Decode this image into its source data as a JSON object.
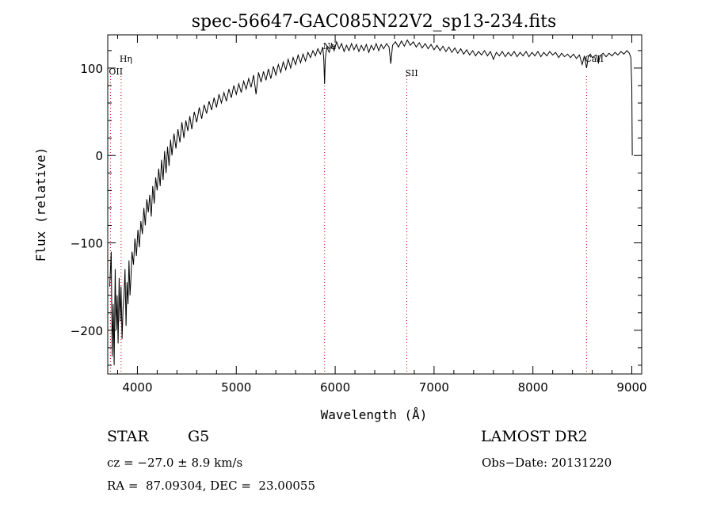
{
  "chart_data": {
    "type": "line",
    "title": "spec-56647-GAC085N22V2_sp13-234.fits",
    "xlabel": "Wavelength (Å)",
    "ylabel": "Flux (relative)",
    "xlim": [
      3700,
      9100
    ],
    "ylim": [
      -250,
      138
    ],
    "xticks": [
      4000,
      5000,
      6000,
      7000,
      8000,
      9000
    ],
    "yticks": [
      -200,
      -100,
      0,
      100
    ],
    "grid": false,
    "line_color": "#000000",
    "marker_color": "#cc0000",
    "lines": [
      {
        "label": "Hη",
        "x": 3835
      },
      {
        "label": "OII",
        "x": 3727
      },
      {
        "label": "Na",
        "x": 5893
      },
      {
        "label": "SII",
        "x": 6724
      },
      {
        "label": "CaII",
        "x": 8542
      }
    ],
    "series": [
      {
        "points": [
          [
            3720,
            -150
          ],
          [
            3735,
            -110
          ],
          [
            3745,
            -230
          ],
          [
            3755,
            -170
          ],
          [
            3765,
            -240
          ],
          [
            3775,
            -130
          ],
          [
            3785,
            -200
          ],
          [
            3795,
            -160
          ],
          [
            3805,
            -215
          ],
          [
            3815,
            -140
          ],
          [
            3825,
            -190
          ],
          [
            3835,
            -150
          ],
          [
            3845,
            -210
          ],
          [
            3855,
            -175
          ],
          [
            3865,
            -160
          ],
          [
            3875,
            -130
          ],
          [
            3885,
            -195
          ],
          [
            3895,
            -145
          ],
          [
            3905,
            -170
          ],
          [
            3915,
            -120
          ],
          [
            3925,
            -160
          ],
          [
            3935,
            -140
          ],
          [
            3945,
            -110
          ],
          [
            3960,
            -125
          ],
          [
            3975,
            -95
          ],
          [
            3990,
            -115
          ],
          [
            4005,
            -85
          ],
          [
            4020,
            -105
          ],
          [
            4035,
            -75
          ],
          [
            4050,
            -90
          ],
          [
            4065,
            -60
          ],
          [
            4080,
            -80
          ],
          [
            4095,
            -50
          ],
          [
            4110,
            -65
          ],
          [
            4125,
            -45
          ],
          [
            4140,
            -70
          ],
          [
            4155,
            -35
          ],
          [
            4170,
            -55
          ],
          [
            4185,
            -25
          ],
          [
            4200,
            -40
          ],
          [
            4215,
            -15
          ],
          [
            4230,
            -35
          ],
          [
            4245,
            -5
          ],
          [
            4260,
            -28
          ],
          [
            4275,
            5
          ],
          [
            4290,
            -20
          ],
          [
            4305,
            10
          ],
          [
            4320,
            -12
          ],
          [
            4335,
            18
          ],
          [
            4350,
            0
          ],
          [
            4370,
            25
          ],
          [
            4390,
            8
          ],
          [
            4410,
            30
          ],
          [
            4430,
            15
          ],
          [
            4450,
            38
          ],
          [
            4470,
            20
          ],
          [
            4490,
            40
          ],
          [
            4510,
            28
          ],
          [
            4530,
            45
          ],
          [
            4550,
            30
          ],
          [
            4575,
            50
          ],
          [
            4600,
            38
          ],
          [
            4625,
            55
          ],
          [
            4650,
            42
          ],
          [
            4675,
            58
          ],
          [
            4700,
            48
          ],
          [
            4725,
            62
          ],
          [
            4750,
            52
          ],
          [
            4775,
            66
          ],
          [
            4800,
            55
          ],
          [
            4825,
            70
          ],
          [
            4850,
            60
          ],
          [
            4875,
            72
          ],
          [
            4900,
            62
          ],
          [
            4925,
            76
          ],
          [
            4950,
            66
          ],
          [
            4975,
            80
          ],
          [
            5000,
            70
          ],
          [
            5025,
            82
          ],
          [
            5050,
            72
          ],
          [
            5075,
            85
          ],
          [
            5100,
            76
          ],
          [
            5125,
            88
          ],
          [
            5150,
            78
          ],
          [
            5175,
            92
          ],
          [
            5200,
            70
          ],
          [
            5225,
            95
          ],
          [
            5250,
            84
          ],
          [
            5275,
            96
          ],
          [
            5300,
            86
          ],
          [
            5325,
            99
          ],
          [
            5350,
            88
          ],
          [
            5375,
            102
          ],
          [
            5400,
            92
          ],
          [
            5425,
            104
          ],
          [
            5450,
            95
          ],
          [
            5475,
            107
          ],
          [
            5500,
            98
          ],
          [
            5525,
            110
          ],
          [
            5550,
            100
          ],
          [
            5575,
            112
          ],
          [
            5600,
            104
          ],
          [
            5625,
            115
          ],
          [
            5650,
            106
          ],
          [
            5675,
            116
          ],
          [
            5700,
            108
          ],
          [
            5725,
            118
          ],
          [
            5750,
            112
          ],
          [
            5775,
            120
          ],
          [
            5800,
            114
          ],
          [
            5825,
            122
          ],
          [
            5850,
            116
          ],
          [
            5875,
            124
          ],
          [
            5885,
            110
          ],
          [
            5893,
            82
          ],
          [
            5900,
            110
          ],
          [
            5915,
            124
          ],
          [
            5940,
            118
          ],
          [
            5965,
            128
          ],
          [
            5990,
            120
          ],
          [
            6015,
            130
          ],
          [
            6040,
            122
          ],
          [
            6065,
            128
          ],
          [
            6090,
            119
          ],
          [
            6115,
            126
          ],
          [
            6140,
            120
          ],
          [
            6165,
            128
          ],
          [
            6190,
            121
          ],
          [
            6215,
            127
          ],
          [
            6240,
            119
          ],
          [
            6265,
            126
          ],
          [
            6290,
            120
          ],
          [
            6315,
            127
          ],
          [
            6340,
            118
          ],
          [
            6365,
            126
          ],
          [
            6390,
            121
          ],
          [
            6415,
            128
          ],
          [
            6440,
            120
          ],
          [
            6465,
            127
          ],
          [
            6490,
            122
          ],
          [
            6520,
            128
          ],
          [
            6545,
            124
          ],
          [
            6563,
            105
          ],
          [
            6580,
            126
          ],
          [
            6610,
            130
          ],
          [
            6640,
            124
          ],
          [
            6670,
            131
          ],
          [
            6700,
            125
          ],
          [
            6730,
            132
          ],
          [
            6760,
            126
          ],
          [
            6790,
            130
          ],
          [
            6820,
            124
          ],
          [
            6850,
            129
          ],
          [
            6880,
            123
          ],
          [
            6910,
            128
          ],
          [
            6940,
            122
          ],
          [
            6970,
            127
          ],
          [
            7000,
            121
          ],
          [
            7030,
            126
          ],
          [
            7060,
            120
          ],
          [
            7090,
            125
          ],
          [
            7120,
            119
          ],
          [
            7150,
            124
          ],
          [
            7180,
            118
          ],
          [
            7210,
            123
          ],
          [
            7240,
            117
          ],
          [
            7270,
            122
          ],
          [
            7300,
            116
          ],
          [
            7330,
            121
          ],
          [
            7360,
            115
          ],
          [
            7390,
            120
          ],
          [
            7420,
            114
          ],
          [
            7450,
            119
          ],
          [
            7480,
            115
          ],
          [
            7510,
            120
          ],
          [
            7540,
            114
          ],
          [
            7570,
            119
          ],
          [
            7600,
            110
          ],
          [
            7630,
            118
          ],
          [
            7660,
            114
          ],
          [
            7690,
            119
          ],
          [
            7720,
            113
          ],
          [
            7750,
            118
          ],
          [
            7780,
            114
          ],
          [
            7810,
            119
          ],
          [
            7840,
            113
          ],
          [
            7870,
            118
          ],
          [
            7900,
            114
          ],
          [
            7930,
            119
          ],
          [
            7960,
            113
          ],
          [
            7990,
            118
          ],
          [
            8020,
            114
          ],
          [
            8050,
            119
          ],
          [
            8080,
            113
          ],
          [
            8110,
            118
          ],
          [
            8140,
            114
          ],
          [
            8170,
            119
          ],
          [
            8200,
            115
          ],
          [
            8230,
            118
          ],
          [
            8260,
            112
          ],
          [
            8290,
            117
          ],
          [
            8320,
            113
          ],
          [
            8350,
            116
          ],
          [
            8380,
            112
          ],
          [
            8410,
            116
          ],
          [
            8440,
            111
          ],
          [
            8470,
            115
          ],
          [
            8498,
            104
          ],
          [
            8520,
            114
          ],
          [
            8542,
            100
          ],
          [
            8560,
            113
          ],
          [
            8580,
            116
          ],
          [
            8600,
            112
          ],
          [
            8640,
            115
          ],
          [
            8662,
            106
          ],
          [
            8680,
            114
          ],
          [
            8710,
            117
          ],
          [
            8740,
            113
          ],
          [
            8770,
            117
          ],
          [
            8800,
            114
          ],
          [
            8830,
            118
          ],
          [
            8860,
            115
          ],
          [
            8890,
            119
          ],
          [
            8920,
            116
          ],
          [
            8950,
            120
          ],
          [
            8975,
            117
          ],
          [
            8990,
            112
          ],
          [
            9000,
            80
          ],
          [
            9005,
            0
          ]
        ]
      }
    ]
  },
  "info": {
    "obj_type": "STAR",
    "obj_class": "G5",
    "survey": "LAMOST DR2",
    "cz": "cz = −27.0 ± 8.9 km/s",
    "obsdate": "Obs−Date: 20131220",
    "radec": "RA =  87.09304, DEC =  23.00055"
  }
}
